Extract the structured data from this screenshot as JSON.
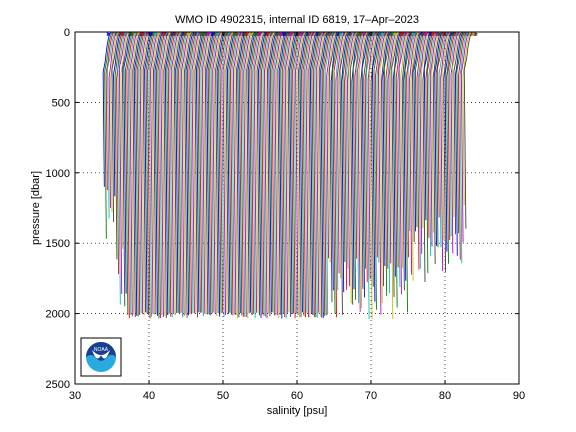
{
  "chart_data": {
    "type": "line",
    "title": "WMO ID 4902315, internal ID 6819, 17–Apr–2023",
    "xlabel": "salinity [psu]",
    "ylabel": "pressure [dbar]",
    "xlim": [
      30,
      90
    ],
    "ylim": [
      2500,
      0
    ],
    "y_reversed": true,
    "grid": true,
    "grid_style": "dotted",
    "x_ticks": [
      30,
      40,
      50,
      60,
      70,
      80,
      90
    ],
    "y_ticks": [
      0,
      500,
      1000,
      1500,
      2000,
      2500
    ],
    "x_tick_labels": [
      "30",
      "40",
      "50",
      "60",
      "70",
      "80",
      "90"
    ],
    "y_tick_labels": [
      "0",
      "500",
      "1000",
      "1500",
      "2000",
      "2500"
    ],
    "profile_offset_psu": 0.2,
    "profile_count": 245,
    "first_profile_surface_salinity": 34.0,
    "series_colors": [
      "#0000ff",
      "#007f00",
      "#ff0000",
      "#00bfbf",
      "#bf00bf",
      "#bfbf00",
      "#404040"
    ],
    "logo": {
      "text": "NOAA",
      "colors": [
        "#1a3f8f",
        "#2aa8e0",
        "#ffffff"
      ]
    }
  }
}
